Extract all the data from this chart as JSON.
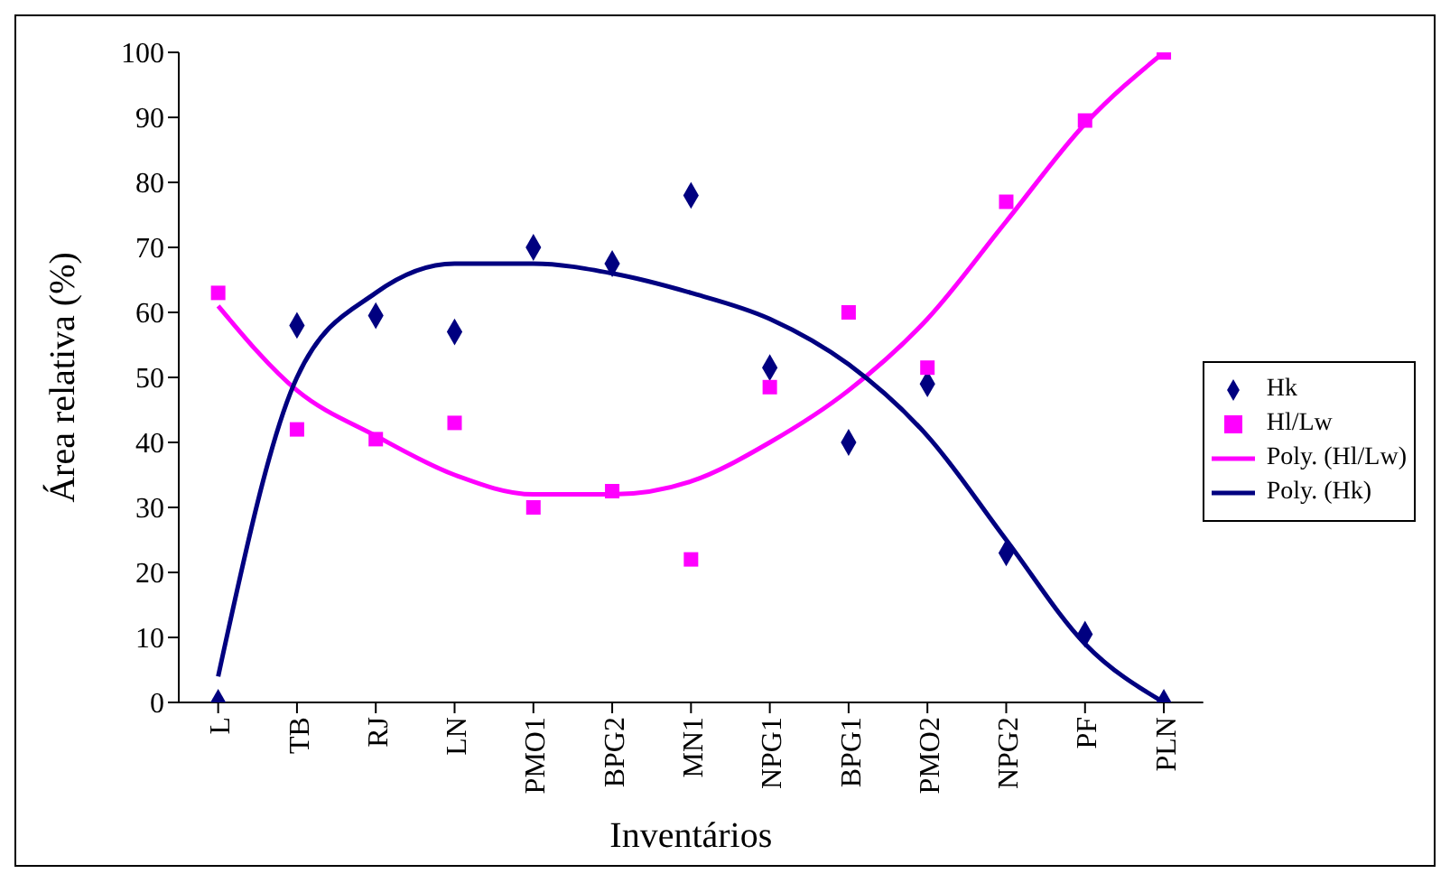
{
  "chart_data": {
    "type": "scatter",
    "xlabel": "Inventários",
    "ylabel": "Área relativa (%)",
    "categories": [
      "L",
      "TB",
      "RJ",
      "LN",
      "PMO1",
      "BPG2",
      "MN1",
      "NPG1",
      "BPG1",
      "PMO2",
      "NPG2",
      "PF",
      "PLN"
    ],
    "ylim": [
      0,
      100
    ],
    "yticks": [
      0,
      10,
      20,
      30,
      40,
      50,
      60,
      70,
      80,
      90,
      100
    ],
    "grid": false,
    "legend": "right",
    "series": [
      {
        "name": "Hk",
        "marker": "diamond",
        "color": "#000080",
        "values": [
          0,
          58,
          59.5,
          57,
          70,
          67.5,
          78,
          51.5,
          40,
          49,
          23,
          10.5,
          0
        ]
      },
      {
        "name": "Hl/Lw",
        "marker": "square",
        "color": "#ff00ff",
        "values": [
          63,
          42,
          40.5,
          43,
          30,
          32.5,
          22,
          48.5,
          60,
          51.5,
          77,
          89.5,
          100
        ]
      },
      {
        "name": "Poly. (Hl/Lw)",
        "type": "line",
        "marker": "none",
        "line_style": "solid",
        "color": "#ff00ff",
        "values": [
          61,
          48,
          41,
          35,
          32,
          32,
          34,
          40,
          48,
          59,
          74,
          89,
          100
        ]
      },
      {
        "name": "Poly. (Hk)",
        "type": "line",
        "marker": "none",
        "line_style": "solid",
        "color": "#000080",
        "values": [
          4,
          50,
          63,
          67.5,
          67.5,
          66,
          63,
          59,
          52,
          41,
          25,
          9,
          0
        ]
      }
    ]
  }
}
